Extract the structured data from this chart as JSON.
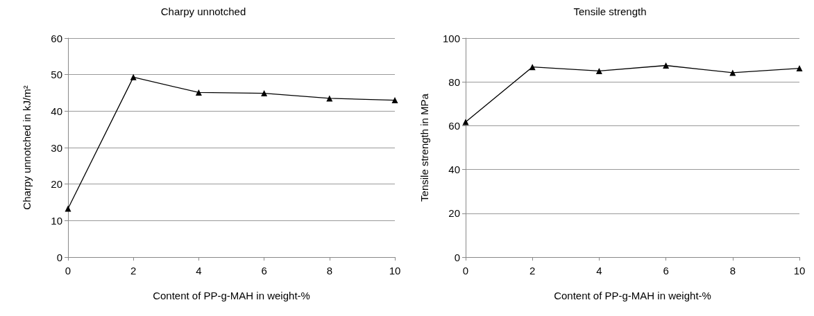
{
  "chart_data": [
    {
      "type": "line",
      "title": "Charpy unnotched",
      "xlabel": "Content of PP-g-MAH in weight-%",
      "ylabel": "Charpy unnotched in kJ/m²",
      "x": [
        0,
        2,
        4,
        6,
        8,
        10
      ],
      "series": [
        {
          "color": "#000000",
          "values": [
            13.3,
            49.3,
            45.1,
            44.9,
            43.5,
            43.0
          ]
        }
      ],
      "xlim": [
        0,
        10
      ],
      "xticks": [
        0,
        2,
        4,
        6,
        8,
        10
      ],
      "ylim": [
        0,
        60
      ],
      "yticks": [
        0,
        10,
        20,
        30,
        40,
        50,
        60
      ],
      "grid": "y",
      "marker": "triangle",
      "line_style": "solid"
    },
    {
      "type": "line",
      "title": "Tensile strength",
      "xlabel": "Content of PP-g-MAH in weight-%",
      "ylabel": "Tensile strength in MPa",
      "x": [
        0,
        2,
        4,
        6,
        8,
        10
      ],
      "series": [
        {
          "color": "#000000",
          "values": [
            61.7,
            86.8,
            85.0,
            87.5,
            84.2,
            86.2
          ]
        }
      ],
      "xlim": [
        0,
        10
      ],
      "xticks": [
        0,
        2,
        4,
        6,
        8,
        10
      ],
      "ylim": [
        0,
        100
      ],
      "yticks": [
        0,
        20,
        40,
        60,
        80,
        100
      ],
      "grid": "y",
      "marker": "triangle",
      "line_style": "solid"
    }
  ]
}
